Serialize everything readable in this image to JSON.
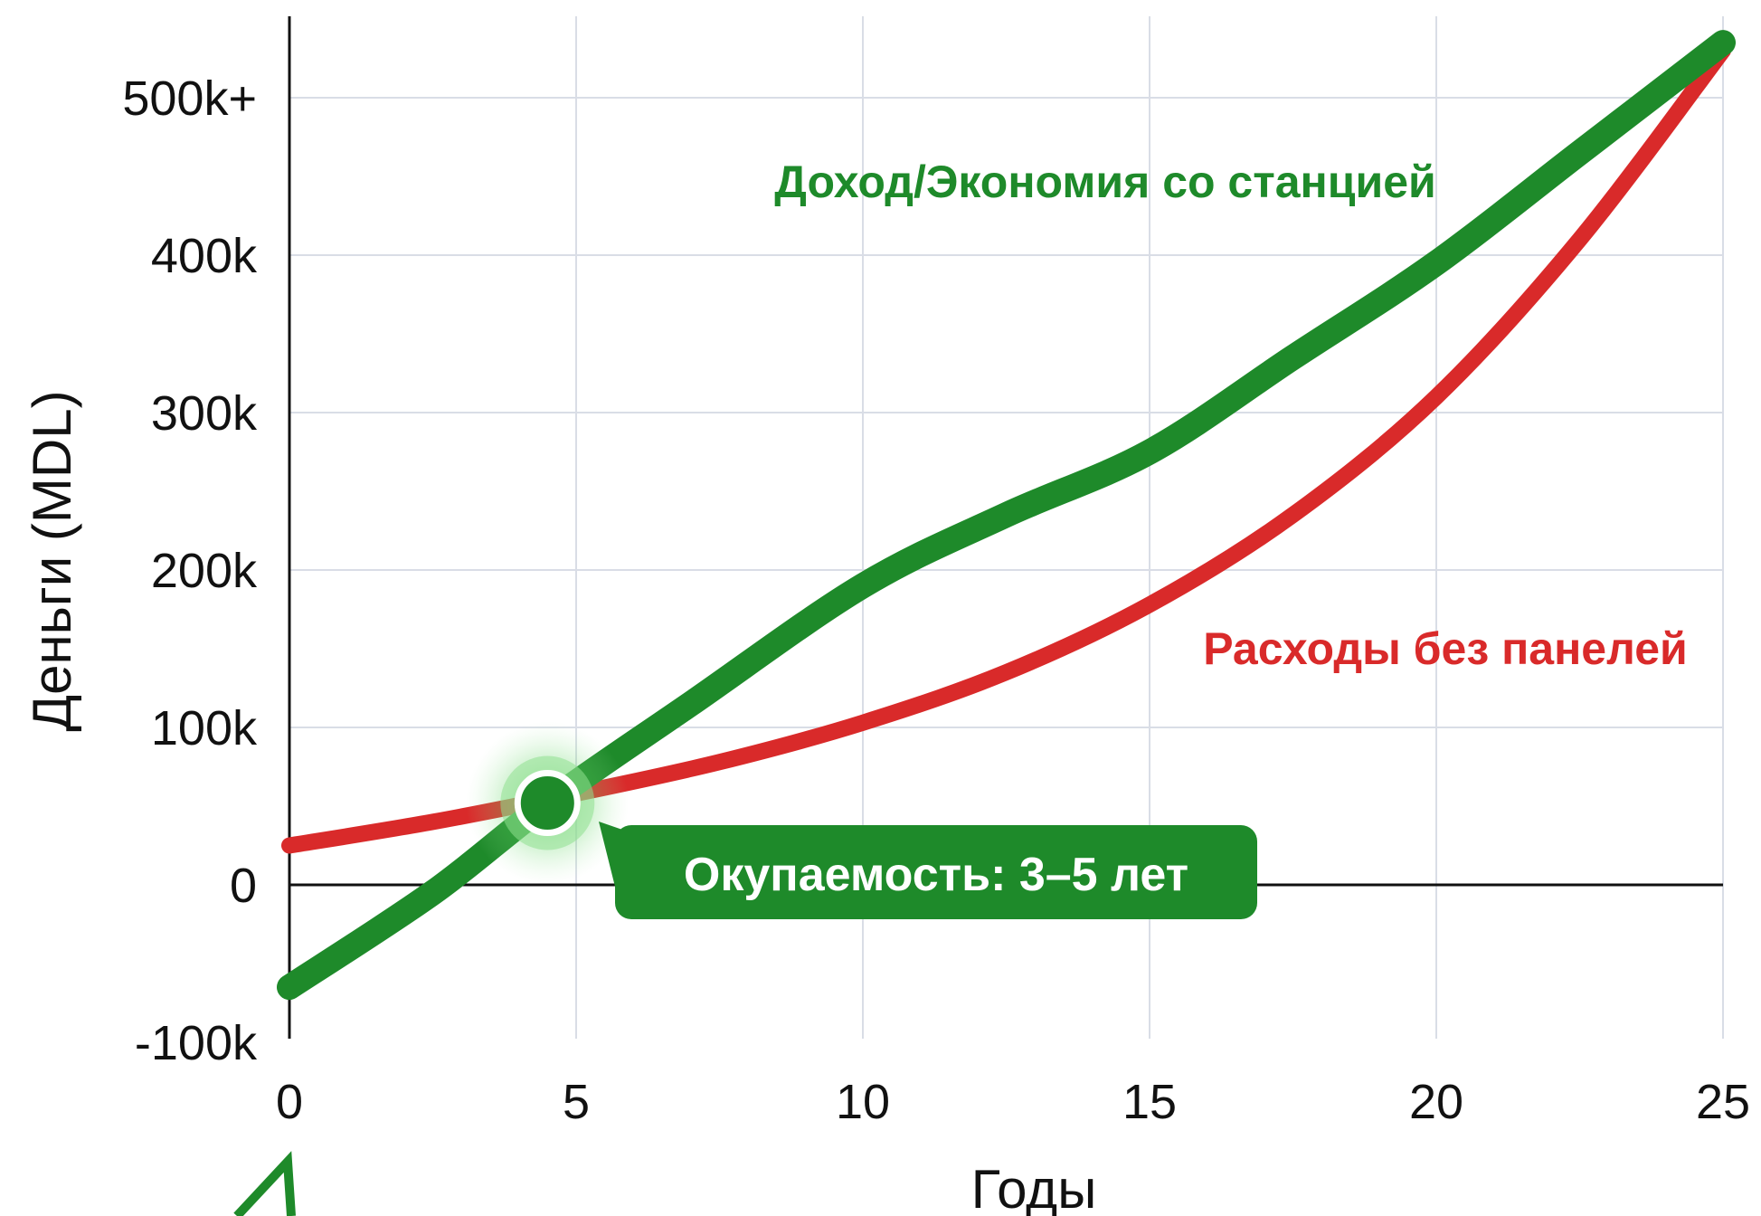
{
  "chart_data": {
    "type": "line",
    "xlabel": "Годы",
    "ylabel": "Деньги (MDL)",
    "xlim": [
      0,
      25
    ],
    "ylim": [
      -100000,
      550000
    ],
    "x_ticks": [
      0,
      5,
      10,
      15,
      20,
      25
    ],
    "x_tick_labels": [
      "0",
      "5",
      "10",
      "15",
      "20",
      "25"
    ],
    "y_ticks": [
      -100000,
      0,
      100000,
      200000,
      300000,
      400000,
      500000
    ],
    "y_tick_labels": [
      "-100k",
      "0",
      "100k",
      "200k",
      "300k",
      "400k",
      "500k+"
    ],
    "grid": true,
    "series": [
      {
        "name": "Доход/Экономия со станцией",
        "color": "#1e8a2a",
        "x": [
          0,
          2.5,
          4.5,
          7,
          10,
          12.5,
          15,
          17.5,
          20,
          22.5,
          25
        ],
        "values": [
          -65000,
          -5000,
          52000,
          115000,
          190000,
          235000,
          275000,
          335000,
          395000,
          465000,
          535000
        ]
      },
      {
        "name": "Расходы без панелей",
        "color": "#d92a2a",
        "x": [
          0,
          2.5,
          5,
          7.5,
          10,
          12.5,
          15,
          17.5,
          20,
          22.5,
          25
        ],
        "values": [
          25000,
          40000,
          58000,
          78000,
          103000,
          135000,
          178000,
          235000,
          310000,
          410000,
          530000
        ]
      }
    ],
    "annotation": {
      "text": "Окупаемость: 3–5 лет",
      "point": {
        "x": 4.5,
        "y": 52000
      },
      "color": "#1e8a2a"
    }
  }
}
